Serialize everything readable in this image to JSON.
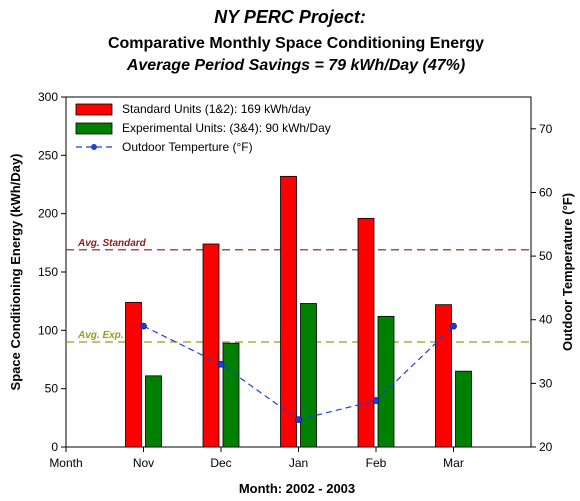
{
  "chart_data": {
    "type": "bar",
    "title": "NY PERC Project:",
    "subtitle": "Comparative Monthly Space Conditioning Energy",
    "subtitle2": "Average Period Savings = 79 kWh/Day (47%)",
    "xlabel": "Month: 2002 - 2003",
    "ylabel": "Space Conditioning Energy (kWh/Day)",
    "y2label": "Outdoor Temperature (°F)",
    "x_ticks": [
      "Month",
      "Nov",
      "Dec",
      "Jan",
      "Feb",
      "Mar"
    ],
    "categories": [
      "Nov",
      "Dec",
      "Jan",
      "Feb",
      "Mar"
    ],
    "ylim": [
      0,
      300
    ],
    "yticks": [
      0,
      50,
      100,
      150,
      200,
      250,
      300
    ],
    "y2lim": [
      20,
      75
    ],
    "y2ticks": [
      20,
      30,
      40,
      50,
      60,
      70
    ],
    "grid": false,
    "legend_position": "top-left",
    "series": [
      {
        "name": "Standard Units (1&2): 169 kWh/day",
        "kind": "bar",
        "color": "#ff0000",
        "axis": "left",
        "values": [
          124,
          174,
          232,
          196,
          122
        ]
      },
      {
        "name": "Experimental Units: (3&4): 90 kWh/Day",
        "kind": "bar",
        "color": "#008000",
        "axis": "left",
        "values": [
          61,
          89,
          123,
          112,
          65
        ]
      },
      {
        "name": "Outdoor Temperture (°F)",
        "kind": "line",
        "color": "#1f3fd6",
        "axis": "right",
        "values": [
          39,
          33,
          24.3,
          27.3,
          39
        ]
      }
    ],
    "reference_lines": [
      {
        "label": "Avg. Standard",
        "value": 169,
        "color": "#8b1a1a"
      },
      {
        "label": "Avg. Exp.",
        "value": 90,
        "color": "#9c9c1c"
      }
    ]
  }
}
